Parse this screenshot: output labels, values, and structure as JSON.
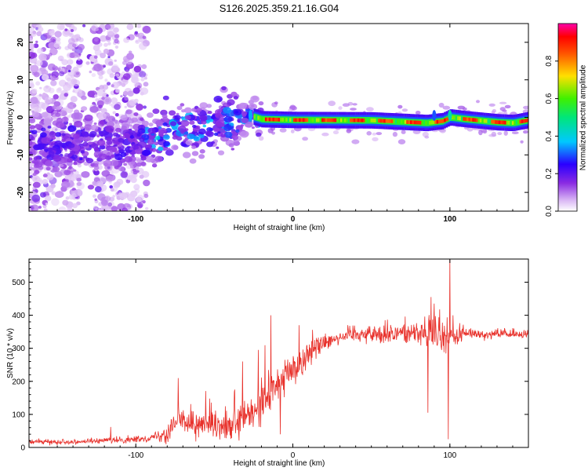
{
  "chart_data": [
    {
      "type": "heatmap",
      "title": "S126.2025.359.21.16.G04",
      "xlabel": "Height of straight line (km)",
      "ylabel": "Frequency (Hz)",
      "xlim": [
        -168,
        150
      ],
      "ylim": [
        -25,
        25
      ],
      "xticks": [
        -100,
        0,
        100
      ],
      "yticks": [
        -20,
        -10,
        0,
        10,
        20
      ],
      "colorbar": {
        "label": "Normalized spectral amplitude",
        "range": [
          0,
          1
        ],
        "ticks": [
          "0.0",
          "0.2",
          "0.4",
          "0.6",
          "0.8"
        ],
        "tick_values": [
          0,
          0.2,
          0.4,
          0.6,
          0.8
        ]
      },
      "ridge": {
        "x": [
          -168,
          -130,
          -110,
          -90,
          -75,
          -60,
          -45,
          -35,
          -28,
          -20,
          0,
          50,
          75,
          85,
          95,
          100,
          110,
          130,
          140,
          150
        ],
        "freq": [
          -6.5,
          -7.5,
          -7.5,
          -6.5,
          -3.5,
          -2.5,
          -1.5,
          -1.0,
          0.5,
          -0.5,
          -0.7,
          -0.8,
          -1.3,
          -1.5,
          -1.0,
          0.0,
          -0.5,
          -1.3,
          -1.5,
          -0.7
        ]
      },
      "segments": [
        {
          "x_range": [
            -168,
            -95
          ],
          "description": "scattered low-amplitude noise, broadband",
          "max_amplitude": 0.2
        },
        {
          "x_range": [
            -95,
            -25
          ],
          "description": "patchy signal converging toward 0 Hz",
          "max_amplitude": 0.35
        },
        {
          "x_range": [
            -25,
            150
          ],
          "description": "strong narrow line near 0 Hz",
          "max_amplitude": 0.95
        }
      ]
    },
    {
      "type": "line",
      "xlabel": "Height of straight line (km)",
      "ylabel": "SNR (10 * v/v)",
      "xlim": [
        -168,
        150
      ],
      "ylim": [
        0,
        570
      ],
      "xticks": [
        -100,
        0,
        100
      ],
      "yticks": [
        0,
        100,
        200,
        300,
        400,
        500
      ],
      "color": "#e8312b",
      "trend": {
        "x": [
          -168,
          -140,
          -120,
          -100,
          -90,
          -80,
          -75,
          -70,
          -60,
          -50,
          -40,
          -35,
          -30,
          -25,
          -20,
          -15,
          -10,
          -5,
          0,
          5,
          10,
          15,
          20,
          25,
          40,
          60,
          70,
          80,
          90,
          100,
          110,
          130,
          150
        ],
        "y": [
          17,
          17,
          20,
          24,
          30,
          45,
          80,
          80,
          70,
          60,
          55,
          70,
          90,
          100,
          130,
          165,
          190,
          215,
          235,
          255,
          285,
          305,
          320,
          330,
          345,
          342,
          346,
          350,
          340,
          330,
          345,
          342,
          342
        ]
      },
      "noise": {
        "x": [
          -168,
          -90,
          -80,
          -40,
          -20,
          25,
          60,
          80,
          90,
          100,
          110,
          150
        ],
        "amplitude": [
          5,
          8,
          30,
          35,
          60,
          20,
          25,
          30,
          55,
          40,
          14,
          10
        ]
      },
      "spikes": [
        {
          "x": -116,
          "y": 62
        },
        {
          "x": -73,
          "y": 210
        },
        {
          "x": -37,
          "y": 175
        },
        {
          "x": -32,
          "y": 260
        },
        {
          "x": -22,
          "y": 295
        },
        {
          "x": -14,
          "y": 400
        },
        {
          "x": -8,
          "y": 40
        },
        {
          "x": 4,
          "y": 370
        },
        {
          "x": 86,
          "y": 105
        },
        {
          "x": 88,
          "y": 455
        },
        {
          "x": 90,
          "y": 435
        },
        {
          "x": 99,
          "y": 25
        },
        {
          "x": 100,
          "y": 575
        },
        {
          "x": 102,
          "y": 400
        }
      ]
    }
  ]
}
